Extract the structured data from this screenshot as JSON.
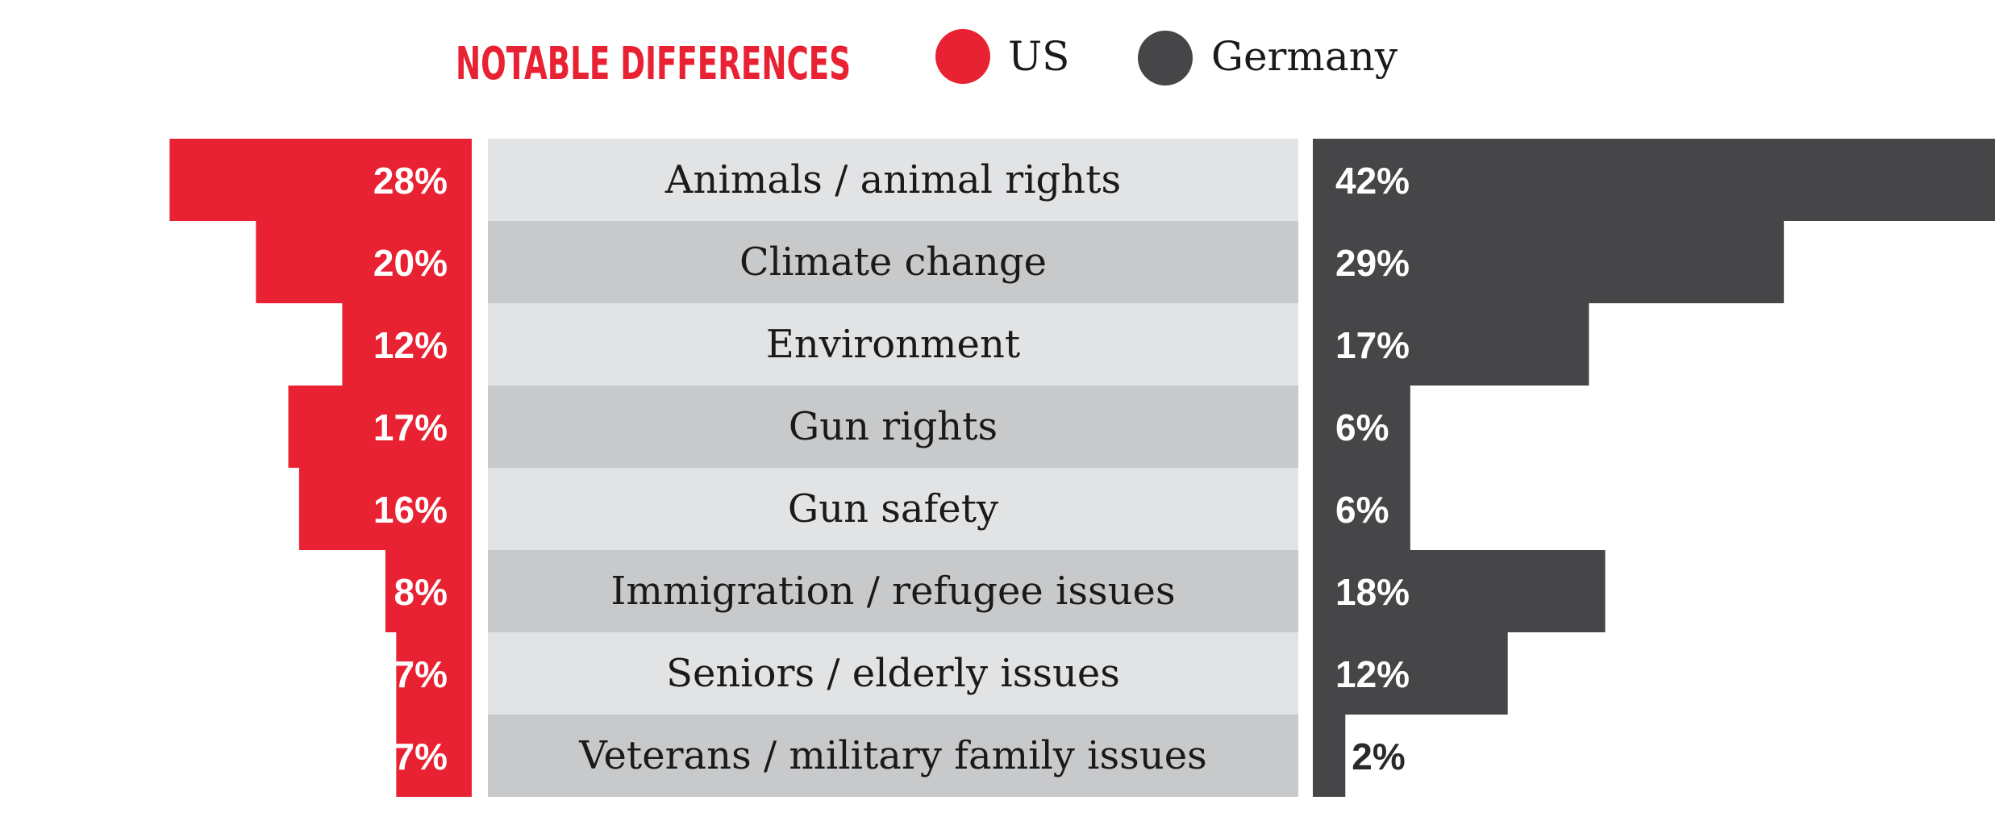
{
  "chart_data": {
    "type": "bar",
    "title": "NOTABLE DIFFERENCES",
    "layout": "butterfly",
    "legend": [
      "US",
      "Germany"
    ],
    "categories": [
      "Animals / animal rights",
      "Climate change",
      "Environment",
      "Gun rights",
      "Gun safety",
      "Immigration / refugee issues",
      "Seniors / elderly issues",
      "Veterans / military family issues"
    ],
    "series": [
      {
        "name": "US",
        "color": "#e82232",
        "values": [
          28,
          20,
          12,
          17,
          16,
          8,
          7,
          7
        ],
        "labels": [
          "28%",
          "20%",
          "12%",
          "17%",
          "16%",
          "8%",
          "7%",
          "7%"
        ]
      },
      {
        "name": "Germany",
        "color": "#464648",
        "values": [
          42,
          29,
          17,
          6,
          6,
          18,
          12,
          2
        ],
        "labels": [
          "42%",
          "29%",
          "17%",
          "6%",
          "6%",
          "18%",
          "12%",
          "2%"
        ]
      }
    ],
    "xlabel": "",
    "ylabel": "",
    "xlim": [
      0,
      42
    ]
  },
  "colors": {
    "accent": "#e82232",
    "dark": "#464648",
    "band_light": "#e2e3e5",
    "band_dark": "#c8c9cb"
  }
}
